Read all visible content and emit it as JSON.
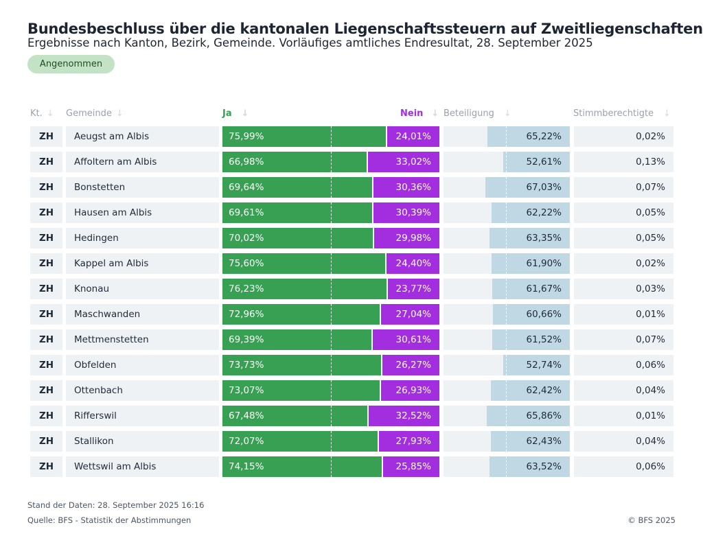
{
  "title": "Bundesbeschluss über die kantonalen Liegenschaftssteuern auf Zweitliegenschaften",
  "subtitle": "Ergebnisse nach Kanton, Bezirk, Gemeinde. Vorläufiges amtliches Endresultat, 28. September 2025",
  "badge": "Angenommen",
  "colors": {
    "ja": "#38a052",
    "nein": "#a22ee0",
    "beteiligung": "#bfd8e4"
  },
  "chart_data": {
    "type": "table",
    "columns": [
      "Kt.",
      "Gemeinde",
      "Ja",
      "Nein",
      "Beteiligung",
      "Stimmberechtigte"
    ],
    "rows": [
      [
        "ZH",
        "Aeugst am Albis",
        "75,99%",
        "24,01%",
        "65,22%",
        "0,02%"
      ],
      [
        "ZH",
        "Affoltern am Albis",
        "66,98%",
        "33,02%",
        "52,61%",
        "0,13%"
      ],
      [
        "ZH",
        "Bonstetten",
        "69,64%",
        "30,36%",
        "67,03%",
        "0,07%"
      ],
      [
        "ZH",
        "Hausen am Albis",
        "69,61%",
        "30,39%",
        "62,22%",
        "0,05%"
      ],
      [
        "ZH",
        "Hedingen",
        "70,02%",
        "29,98%",
        "63,35%",
        "0,05%"
      ],
      [
        "ZH",
        "Kappel am Albis",
        "75,60%",
        "24,40%",
        "61,90%",
        "0,02%"
      ],
      [
        "ZH",
        "Knonau",
        "76,23%",
        "23,77%",
        "61,67%",
        "0,03%"
      ],
      [
        "ZH",
        "Maschwanden",
        "72,96%",
        "27,04%",
        "60,66%",
        "0,01%"
      ],
      [
        "ZH",
        "Mettmenstetten",
        "69,39%",
        "30,61%",
        "61,52%",
        "0,07%"
      ],
      [
        "ZH",
        "Obfelden",
        "73,73%",
        "26,27%",
        "52,74%",
        "0,06%"
      ],
      [
        "ZH",
        "Ottenbach",
        "73,07%",
        "26,93%",
        "62,42%",
        "0,04%"
      ],
      [
        "ZH",
        "Rifferswil",
        "67,48%",
        "32,52%",
        "65,86%",
        "0,01%"
      ],
      [
        "ZH",
        "Stallikon",
        "72,07%",
        "27,93%",
        "62,43%",
        "0,04%"
      ],
      [
        "ZH",
        "Wettswil am Albis",
        "74,15%",
        "25,85%",
        "63,52%",
        "0,06%"
      ]
    ]
  },
  "footer": {
    "stand": "Stand der Daten: 28. September 2025 16:16",
    "quelle": "Quelle: BFS - Statistik der Abstimmungen",
    "copyright": "© BFS 2025"
  }
}
